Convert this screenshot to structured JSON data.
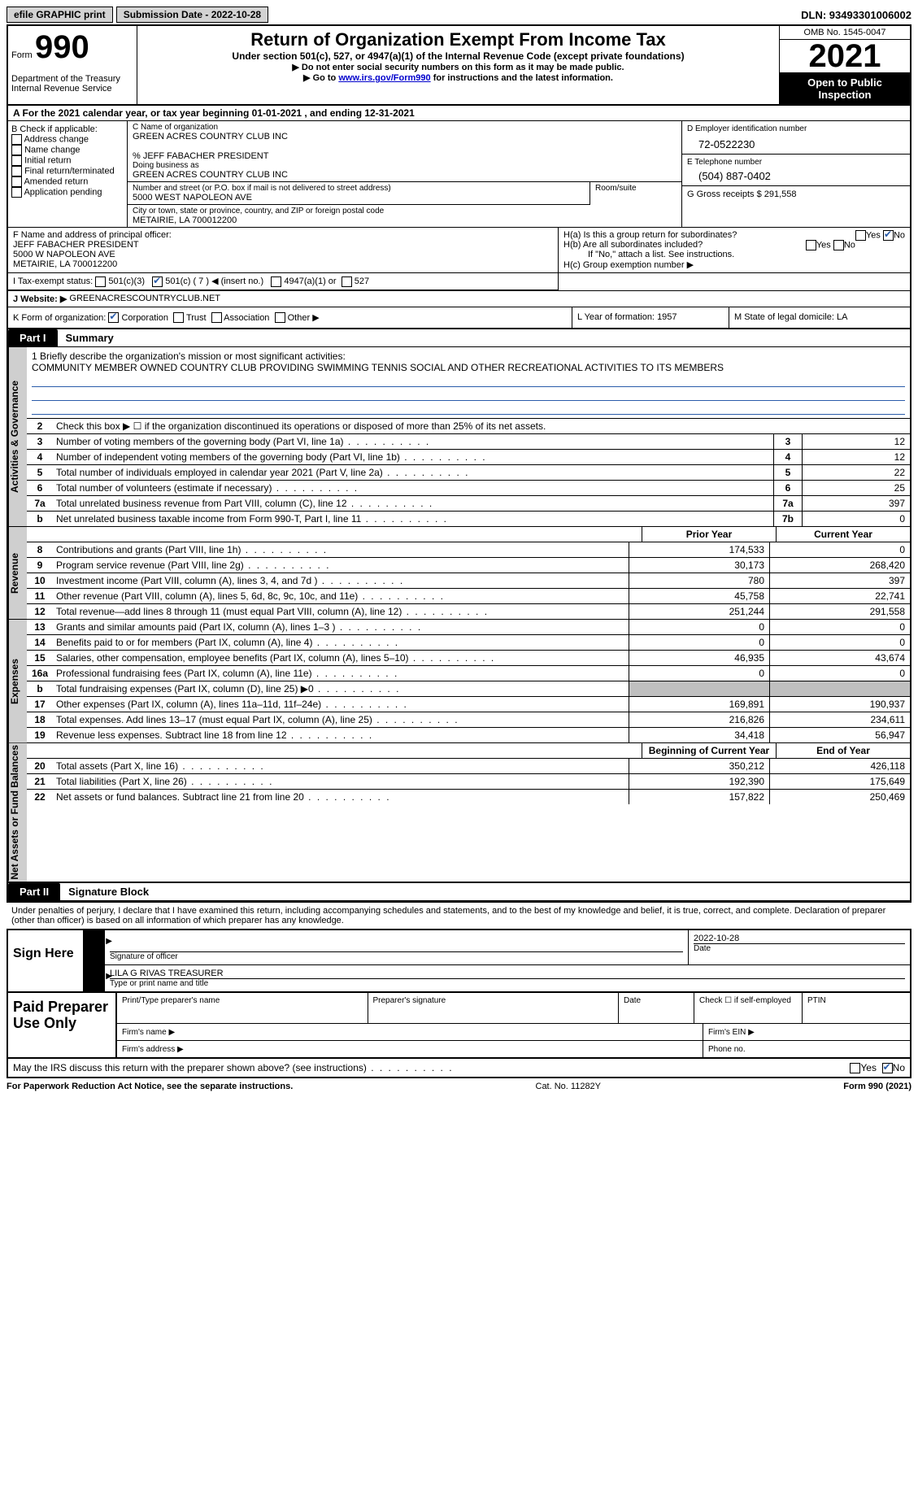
{
  "topbar": {
    "efile": "efile GRAPHIC print",
    "submission": "Submission Date - 2022-10-28",
    "dln": "DLN: 93493301006002"
  },
  "header": {
    "form_prefix": "Form",
    "form_num": "990",
    "dept": "Department of the Treasury Internal Revenue Service",
    "title": "Return of Organization Exempt From Income Tax",
    "sub": "Under section 501(c), 527, or 4947(a)(1) of the Internal Revenue Code (except private foundations)",
    "note1": "▶ Do not enter social security numbers on this form as it may be made public.",
    "note2_pre": "▶ Go to ",
    "note2_link": "www.irs.gov/Form990",
    "note2_post": " for instructions and the latest information.",
    "omb": "OMB No. 1545-0047",
    "year": "2021",
    "open": "Open to Public Inspection"
  },
  "row_a": "A  For the 2021 calendar year, or tax year beginning 01-01-2021    , and ending 12-31-2021",
  "col_b": {
    "label": "B Check if applicable:",
    "items": [
      "Address change",
      "Name change",
      "Initial return",
      "Final return/terminated",
      "Amended return",
      "Application pending"
    ]
  },
  "col_c": {
    "name_label": "C Name of organization",
    "name": "GREEN ACRES COUNTRY CLUB INC",
    "care_of": "% JEFF FABACHER PRESIDENT",
    "dba_label": "Doing business as",
    "dba": "GREEN ACRES COUNTRY CLUB INC",
    "street_label": "Number and street (or P.O. box if mail is not delivered to street address)",
    "street": "5000 WEST NAPOLEON AVE",
    "room_label": "Room/suite",
    "city_label": "City or town, state or province, country, and ZIP or foreign postal code",
    "city": "METAIRIE, LA  700012200"
  },
  "col_d": {
    "ein_label": "D Employer identification number",
    "ein": "72-0522230",
    "phone_label": "E Telephone number",
    "phone": "(504) 887-0402",
    "gross_label": "G Gross receipts $",
    "gross": "291,558"
  },
  "row_f": {
    "label": "F  Name and address of principal officer:",
    "name": "JEFF FABACHER PRESIDENT",
    "addr1": "5000 W NAPOLEON AVE",
    "addr2": "METAIRIE, LA  700012200"
  },
  "row_h": {
    "ha": "H(a)  Is this a group return for subordinates?",
    "hb": "H(b)  Are all subordinates included?",
    "hb_note": "If \"No,\" attach a list. See instructions.",
    "hc": "H(c)  Group exemption number ▶"
  },
  "row_i": {
    "label": "I    Tax-exempt status:",
    "o1": "501(c)(3)",
    "o2": "501(c) ( 7 ) ◀ (insert no.)",
    "o3": "4947(a)(1) or",
    "o4": "527"
  },
  "row_j": {
    "label": "J   Website: ▶",
    "val": "GREENACRESCOUNTRYCLUB.NET"
  },
  "row_k": {
    "label": "K Form of organization:",
    "corp": "Corporation",
    "trust": "Trust",
    "assoc": "Association",
    "other": "Other ▶"
  },
  "row_l": {
    "label": "L Year of formation:",
    "val": "1957"
  },
  "row_m": {
    "label": "M State of legal domicile:",
    "val": "LA"
  },
  "part1": {
    "tab": "Part I",
    "title": "Summary"
  },
  "mission": {
    "label": "1    Briefly describe the organization's mission or most significant activities:",
    "text": "COMMUNITY MEMBER OWNED COUNTRY CLUB PROVIDING SWIMMING TENNIS SOCIAL AND OTHER RECREATIONAL ACTIVITIES TO ITS MEMBERS"
  },
  "line2": "Check this box ▶ ☐  if the organization discontinued its operations or disposed of more than 25% of its net assets.",
  "vtabs": {
    "gov": "Activities & Governance",
    "rev": "Revenue",
    "exp": "Expenses",
    "net": "Net Assets or Fund Balances"
  },
  "gov_lines": [
    {
      "n": "3",
      "t": "Number of voting members of the governing body (Part VI, line 1a)",
      "box": "3",
      "v": "12"
    },
    {
      "n": "4",
      "t": "Number of independent voting members of the governing body (Part VI, line 1b)",
      "box": "4",
      "v": "12"
    },
    {
      "n": "5",
      "t": "Total number of individuals employed in calendar year 2021 (Part V, line 2a)",
      "box": "5",
      "v": "22"
    },
    {
      "n": "6",
      "t": "Total number of volunteers (estimate if necessary)",
      "box": "6",
      "v": "25"
    },
    {
      "n": "7a",
      "t": "Total unrelated business revenue from Part VIII, column (C), line 12",
      "box": "7a",
      "v": "397"
    },
    {
      "n": "b",
      "t": "Net unrelated business taxable income from Form 990-T, Part I, line 11",
      "box": "7b",
      "v": "0"
    }
  ],
  "col_hdr": {
    "prior": "Prior Year",
    "current": "Current Year",
    "boy": "Beginning of Current Year",
    "eoy": "End of Year"
  },
  "rev_lines": [
    {
      "n": "8",
      "t": "Contributions and grants (Part VIII, line 1h)",
      "p": "174,533",
      "c": "0"
    },
    {
      "n": "9",
      "t": "Program service revenue (Part VIII, line 2g)",
      "p": "30,173",
      "c": "268,420"
    },
    {
      "n": "10",
      "t": "Investment income (Part VIII, column (A), lines 3, 4, and 7d )",
      "p": "780",
      "c": "397"
    },
    {
      "n": "11",
      "t": "Other revenue (Part VIII, column (A), lines 5, 6d, 8c, 9c, 10c, and 11e)",
      "p": "45,758",
      "c": "22,741"
    },
    {
      "n": "12",
      "t": "Total revenue—add lines 8 through 11 (must equal Part VIII, column (A), line 12)",
      "p": "251,244",
      "c": "291,558"
    }
  ],
  "exp_lines": [
    {
      "n": "13",
      "t": "Grants and similar amounts paid (Part IX, column (A), lines 1–3 )",
      "p": "0",
      "c": "0"
    },
    {
      "n": "14",
      "t": "Benefits paid to or for members (Part IX, column (A), line 4)",
      "p": "0",
      "c": "0"
    },
    {
      "n": "15",
      "t": "Salaries, other compensation, employee benefits (Part IX, column (A), lines 5–10)",
      "p": "46,935",
      "c": "43,674"
    },
    {
      "n": "16a",
      "t": "Professional fundraising fees (Part IX, column (A), line 11e)",
      "p": "0",
      "c": "0"
    },
    {
      "n": "b",
      "t": "Total fundraising expenses (Part IX, column (D), line 25) ▶0",
      "p": "",
      "c": "",
      "shaded": true
    },
    {
      "n": "17",
      "t": "Other expenses (Part IX, column (A), lines 11a–11d, 11f–24e)",
      "p": "169,891",
      "c": "190,937"
    },
    {
      "n": "18",
      "t": "Total expenses. Add lines 13–17 (must equal Part IX, column (A), line 25)",
      "p": "216,826",
      "c": "234,611"
    },
    {
      "n": "19",
      "t": "Revenue less expenses. Subtract line 18 from line 12",
      "p": "34,418",
      "c": "56,947"
    }
  ],
  "net_lines": [
    {
      "n": "20",
      "t": "Total assets (Part X, line 16)",
      "p": "350,212",
      "c": "426,118"
    },
    {
      "n": "21",
      "t": "Total liabilities (Part X, line 26)",
      "p": "192,390",
      "c": "175,649"
    },
    {
      "n": "22",
      "t": "Net assets or fund balances. Subtract line 21 from line 20",
      "p": "157,822",
      "c": "250,469"
    }
  ],
  "part2": {
    "tab": "Part II",
    "title": "Signature Block"
  },
  "sig_decl": "Under penalties of perjury, I declare that I have examined this return, including accompanying schedules and statements, and to the best of my knowledge and belief, it is true, correct, and complete. Declaration of preparer (other than officer) is based on all information of which preparer has any knowledge.",
  "sign": {
    "label": "Sign Here",
    "sig_officer": "Signature of officer",
    "date": "Date",
    "date_val": "2022-10-28",
    "name": "LILA G RIVAS  TREASURER",
    "name_label": "Type or print name and title"
  },
  "paid": {
    "label": "Paid Preparer Use Only",
    "prep_name": "Print/Type preparer's name",
    "prep_sig": "Preparer's signature",
    "prep_date": "Date",
    "check": "Check ☐ if self-employed",
    "ptin": "PTIN",
    "firm_name": "Firm's name  ▶",
    "firm_ein": "Firm's EIN ▶",
    "firm_addr": "Firm's address ▶",
    "phone": "Phone no."
  },
  "discuss": "May the IRS discuss this return with the preparer shown above? (see instructions)",
  "footer": {
    "left": "For Paperwork Reduction Act Notice, see the separate instructions.",
    "mid": "Cat. No. 11282Y",
    "right": "Form 990 (2021)"
  },
  "yes": "Yes",
  "no": "No"
}
